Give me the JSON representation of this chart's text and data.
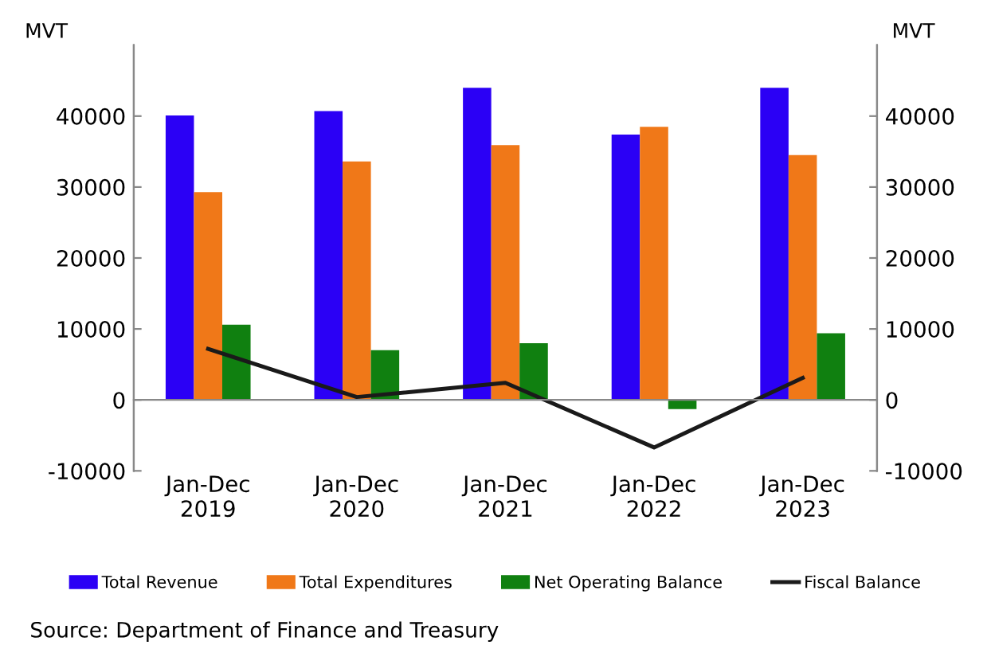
{
  "chart_data": {
    "type": "bar",
    "categories": [
      "Jan-Dec\n2019",
      "Jan-Dec\n2020",
      "Jan-Dec\n2021",
      "Jan-Dec\n2022",
      "Jan-Dec\n2023"
    ],
    "series": [
      {
        "name": "Total Revenue",
        "color": "#2b00f5",
        "values": [
          40100,
          40700,
          44000,
          37400,
          44000
        ]
      },
      {
        "name": "Total Expenditures",
        "color": "#f07818",
        "values": [
          29300,
          33600,
          35900,
          38500,
          34500
        ]
      },
      {
        "name": "Net Operating Balance",
        "color": "#108010",
        "values": [
          10600,
          7000,
          8000,
          -1300,
          9400
        ]
      },
      {
        "name": "Fiscal Balance",
        "type": "line",
        "color": "#1a1a1a",
        "values": [
          7200,
          400,
          2400,
          -6700,
          3100
        ]
      }
    ],
    "ylabel": "MVT",
    "y2label": "MVT",
    "ylim": [
      -10000,
      50000
    ],
    "yticks": [
      -10000,
      0,
      10000,
      20000,
      30000,
      40000
    ],
    "y2lim": [
      -10000,
      50000
    ],
    "y2ticks": [
      -10000,
      0,
      10000,
      20000,
      30000,
      40000
    ],
    "legend": "bottom",
    "annotations": [
      "Source: Department of Finance and Treasury"
    ]
  }
}
